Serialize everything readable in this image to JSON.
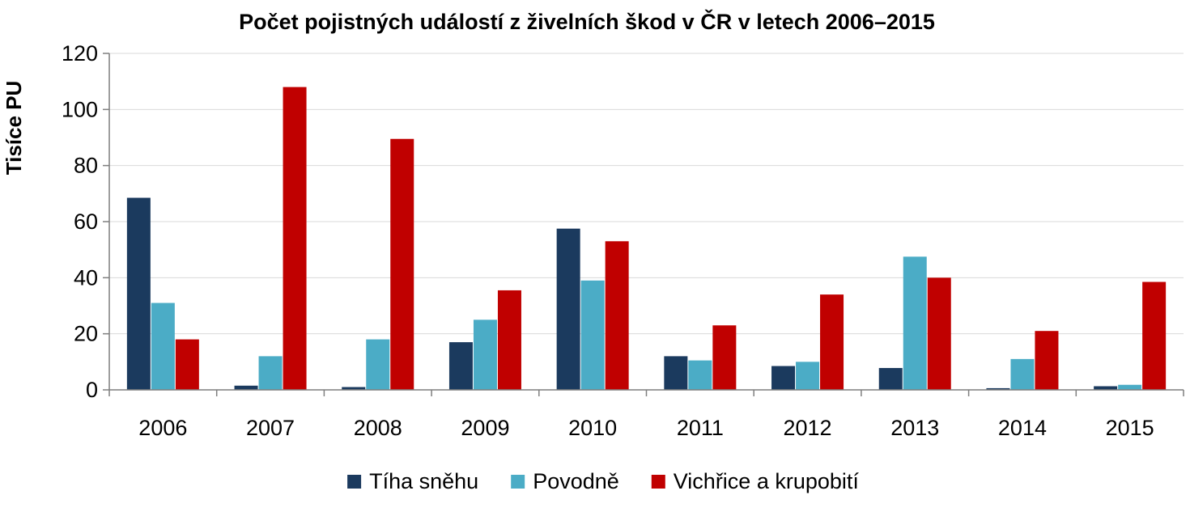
{
  "chart_data": {
    "type": "bar",
    "title": "Počet pojistných událostí z živelních škod v ČR v letech 2006–2015",
    "ylabel": "Tisíce PU",
    "xlabel": "",
    "ylim": [
      0,
      120
    ],
    "yticks": [
      0,
      20,
      40,
      60,
      80,
      100,
      120
    ],
    "grid": true,
    "legend_position": "bottom",
    "categories": [
      "2006",
      "2007",
      "2008",
      "2009",
      "2010",
      "2011",
      "2012",
      "2013",
      "2014",
      "2015"
    ],
    "series": [
      {
        "name": "Tíha sněhu",
        "color": "#1b3a5e",
        "values": [
          68.5,
          1.5,
          1.0,
          17.0,
          57.5,
          12.0,
          8.5,
          7.8,
          0.6,
          1.3
        ]
      },
      {
        "name": "Povodně",
        "color": "#4bacc6",
        "values": [
          31.0,
          12.0,
          18.0,
          25.0,
          39.0,
          10.5,
          10.0,
          47.5,
          11.0,
          1.8
        ]
      },
      {
        "name": "Vichřice a krupobití",
        "color": "#c00000",
        "values": [
          18.0,
          108.0,
          89.5,
          35.5,
          53.0,
          23.0,
          34.0,
          40.0,
          21.0,
          38.5
        ]
      }
    ]
  }
}
